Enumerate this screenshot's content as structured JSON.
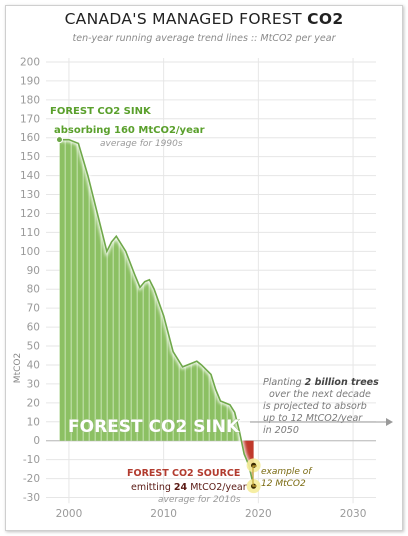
{
  "title_main": "CANADA'S MANAGED FOREST",
  "title_bold": "CO2",
  "subtitle": "ten-year running average trend lines :: MtCO2 per year",
  "chart_data": {
    "type": "area",
    "title": "CANADA'S MANAGED FOREST CO2",
    "subtitle": "ten-year running average trend lines :: MtCO2 per year",
    "xlabel": "",
    "ylabel": "MtCO2",
    "xlim": [
      1998,
      2032
    ],
    "ylim": [
      -35,
      200
    ],
    "x_ticks": [
      2000,
      2010,
      2020,
      2030
    ],
    "y_ticks": [
      200,
      190,
      180,
      170,
      160,
      150,
      140,
      130,
      120,
      110,
      100,
      90,
      80,
      70,
      60,
      50,
      40,
      30,
      20,
      10,
      0,
      -10,
      -20,
      -30
    ],
    "grid": true,
    "x": [
      1999.0,
      2000.0,
      2001.0,
      2002.0,
      2003.0,
      2004.0,
      2004.5,
      2005.0,
      2006.0,
      2007.0,
      2007.5,
      2008.0,
      2008.5,
      2009.0,
      2010.0,
      2011.0,
      2012.0,
      2012.5,
      2013.0,
      2013.5,
      2014.0,
      2015.0,
      2015.5,
      2016.0,
      2016.5,
      2017.0,
      2017.5,
      2018.0,
      2018.5,
      2019.0,
      2019.5
    ],
    "values": [
      159,
      159,
      157,
      140,
      120,
      100,
      105,
      108,
      100,
      87,
      81,
      84,
      85,
      80,
      66,
      47,
      39,
      40,
      41,
      42,
      40,
      35,
      27,
      21,
      20,
      19,
      15,
      5,
      -7,
      -13,
      -24
    ],
    "series": [
      {
        "name": "Forest CO2 sink",
        "color": "#8cc063",
        "values_range": [
          0,
          159
        ]
      },
      {
        "name": "Forest CO2 source",
        "color": "#c0392b"
      }
    ],
    "annotations": [
      {
        "label": "FOREST CO2 SINK",
        "color": "#5aa02c"
      },
      {
        "label": "absorbing 160 MtCO2/year",
        "color": "#5aa02c"
      },
      {
        "label": "average for 1990s",
        "color": "#9a9a9a"
      },
      {
        "label": "FOREST CO2 SINK",
        "color": "#ffffff"
      },
      {
        "label": "FOREST CO2 SOURCE",
        "color": "#b23b2e"
      },
      {
        "label": "emitting 24 MtCO2/year",
        "color": "#5a1a14"
      },
      {
        "label": "average for 2010s",
        "color": "#9a9a9a"
      },
      {
        "label": "example of 12 MtCO2",
        "color": "#7a6a10"
      },
      {
        "label": "Planting 2 billion trees over the next decade is projected to absorb up to 12 MtCO2/year in 2050",
        "color": "#7a7a7a"
      }
    ],
    "example_markers": [
      -13,
      -24
    ]
  },
  "text": {
    "sink_header": "FOREST CO2 SINK",
    "sink_value_prefix": "absorbing",
    "sink_value_bold": "160",
    "sink_value_suffix": "MtCO2/year",
    "sink_avg": "average for 1990s",
    "sink_big": "FOREST CO2 SINK",
    "source_header": "FOREST CO2 SOURCE",
    "source_value_prefix": "emitting",
    "source_value_bold": "24",
    "source_value_suffix": "MtCO2/year",
    "source_avg": "average for 2010s",
    "example_line1": "example of",
    "example_line2": "12 MtCO2",
    "plant_line1_prefix": "Planting",
    "plant_line1_bold": "2 billion trees",
    "plant_line2": "over the next decade",
    "plant_line3": "is projected to absorb",
    "plant_line4": "up to 12 MtCO2/year",
    "plant_line5": "in 2050"
  },
  "colors": {
    "sink_fill": "#8cc063",
    "sink_stroke": "#6fa84a",
    "source_fill": "#c0392b",
    "highlight": "#f5ec9a",
    "grid": "#e6e6e6"
  }
}
